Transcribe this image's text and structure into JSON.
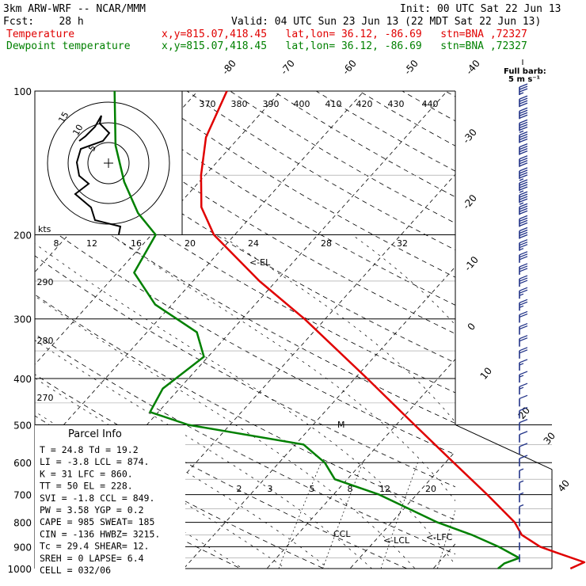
{
  "header": {
    "line1_left": "3km ARW-WRF -- NCAR/MMM",
    "line1_right": "Init: 00 UTC Sat 22 Jun 13",
    "line2_left": "Fcst:    28 h",
    "line2_right": "Valid: 04 UTC Sun 23 Jun 13 (22 MDT Sat 22 Jun 13)",
    "temp_label": "Temperature",
    "temp_loc": "x,y=815.07,418.45   lat,lon= 36.12, -86.69   stn=BNA ,72327",
    "dew_label": "Dewpoint temperature",
    "dew_loc": "x,y=815.07,418.45   lat,lon= 36.12, -86.69   stn=BNA ,72327"
  },
  "colors": {
    "temperature": "#e00000",
    "dewpoint": "#008000",
    "wind": "#223388",
    "annot": "#2244aa"
  },
  "pressure_labels": [
    "100",
    "200",
    "300",
    "400",
    "500",
    "600",
    "700",
    "800",
    "900",
    "1000"
  ],
  "temp_top_labels": [
    "-80",
    "-70",
    "-60",
    "-50",
    "-40"
  ],
  "temp_right_labels": [
    "-30",
    "-20",
    "-10",
    "0",
    "10",
    "20",
    "30",
    "40"
  ],
  "theta_labels": [
    "370",
    "380",
    "390",
    "400",
    "410",
    "420",
    "430",
    "440"
  ],
  "mixing_upper_labels": [
    "8",
    "12",
    "16",
    "20",
    "24",
    "28",
    "32"
  ],
  "mixing_lower_labels": [
    "2",
    "3",
    "5",
    "8",
    "12",
    "20"
  ],
  "dry_labels": [
    "290",
    "280",
    "270"
  ],
  "hodograph": {
    "kts_label": "kts",
    "ring_labels": [
      "5",
      "10",
      "15"
    ]
  },
  "full_barb_label": "Full barb:",
  "full_barb_units": "5 m s⁻¹",
  "annotations": {
    "el": "<-EL",
    "ccl": "CCL",
    "lcl": "<-LCL",
    "lfc": "<-LFC",
    "m": "M"
  },
  "parcel_info": {
    "title": "Parcel Info",
    "rows": [
      "T  =  24.8  Td =  19.2",
      "LI =  -3.8  LCL = 874.",
      "K  =    31  LFC = 860.",
      "TT =    50  EL  = 228.",
      "SVI =  -1.8  CCL = 849.",
      "PW =  3.58  YGP =  0.2",
      "CAPE =  985  SWEAT=  185",
      "CIN =  -136  HWBZ= 3215.",
      "Tc =  29.4  SHEAR=  12.",
      "SREH =    0  LAPSE=  6.4",
      "CELL = 032/06"
    ]
  },
  "chart_data": {
    "type": "line",
    "y_axis": "pressure (hPa), log scale",
    "x_axis": "temperature (°C), skewed",
    "ylim": [
      1000,
      100
    ],
    "series": [
      {
        "name": "Temperature",
        "color": "#e00000",
        "points": [
          {
            "p": 1000,
            "t": 26.5
          },
          {
            "p": 970,
            "t": 27.5
          },
          {
            "p": 925,
            "t": 23.0
          },
          {
            "p": 900,
            "t": 20.5
          },
          {
            "p": 850,
            "t": 17.0
          },
          {
            "p": 800,
            "t": 14.8
          },
          {
            "p": 700,
            "t": 8.5
          },
          {
            "p": 600,
            "t": 1.0
          },
          {
            "p": 500,
            "t": -7.8
          },
          {
            "p": 400,
            "t": -18.5
          },
          {
            "p": 300,
            "t": -32.5
          },
          {
            "p": 250,
            "t": -42.0
          },
          {
            "p": 200,
            "t": -52.5
          },
          {
            "p": 175,
            "t": -57.0
          },
          {
            "p": 150,
            "t": -60.5
          },
          {
            "p": 125,
            "t": -64.0
          },
          {
            "p": 100,
            "t": -66.5
          }
        ]
      },
      {
        "name": "Dewpoint temperature",
        "color": "#008000",
        "points": [
          {
            "p": 1000,
            "t": 17.8
          },
          {
            "p": 975,
            "t": 18.0
          },
          {
            "p": 950,
            "t": 19.2
          },
          {
            "p": 900,
            "t": 15.5
          },
          {
            "p": 850,
            "t": 11.0
          },
          {
            "p": 800,
            "t": 5.5
          },
          {
            "p": 700,
            "t": -4.5
          },
          {
            "p": 650,
            "t": -11.5
          },
          {
            "p": 600,
            "t": -14.5
          },
          {
            "p": 550,
            "t": -19.0
          },
          {
            "p": 500,
            "t": -35.0
          },
          {
            "p": 470,
            "t": -41.0
          },
          {
            "p": 420,
            "t": -42.0
          },
          {
            "p": 360,
            "t": -40.5
          },
          {
            "p": 320,
            "t": -44.0
          },
          {
            "p": 280,
            "t": -52.0
          },
          {
            "p": 240,
            "t": -58.0
          },
          {
            "p": 200,
            "t": -59.5
          },
          {
            "p": 180,
            "t": -64.0
          },
          {
            "p": 155,
            "t": -69.0
          },
          {
            "p": 130,
            "t": -74.0
          },
          {
            "p": 100,
            "t": -80.0
          }
        ]
      }
    ],
    "wind_speed_ms": [
      1,
      1,
      2,
      2,
      3,
      3,
      4,
      4,
      5,
      5,
      5,
      6,
      6,
      7,
      8,
      8,
      9,
      10,
      10,
      11,
      12,
      13,
      14,
      15,
      16,
      17,
      18,
      20,
      21,
      22,
      23,
      24,
      24,
      25,
      26,
      25,
      24,
      22,
      20,
      18
    ]
  }
}
